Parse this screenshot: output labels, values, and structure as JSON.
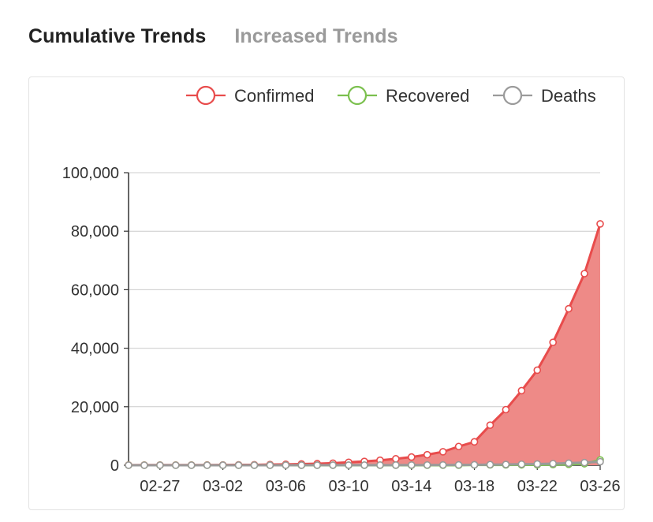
{
  "tabs": [
    {
      "label": "Cumulative Trends",
      "active": true
    },
    {
      "label": "Increased Trends",
      "active": false
    }
  ],
  "colors": {
    "confirmed": "#e84c4c",
    "confirmed_area": "#ee8a87",
    "recovered": "#7bc04e",
    "deaths": "#9a9a9a"
  },
  "chart_data": {
    "type": "area",
    "title": "",
    "xlabel": "",
    "ylabel": "",
    "ylim": [
      0,
      100000
    ],
    "yticks": [
      "0",
      "20,000",
      "40,000",
      "60,000",
      "80,000",
      "100,000"
    ],
    "x": [
      "02-25",
      "02-26",
      "02-27",
      "02-28",
      "02-29",
      "03-01",
      "03-02",
      "03-03",
      "03-04",
      "03-05",
      "03-06",
      "03-07",
      "03-08",
      "03-09",
      "03-10",
      "03-11",
      "03-12",
      "03-13",
      "03-14",
      "03-15",
      "03-16",
      "03-17",
      "03-18",
      "03-19",
      "03-20",
      "03-21",
      "03-22",
      "03-23",
      "03-24",
      "03-25",
      "03-26"
    ],
    "xtick_labels": [
      "02-27",
      "03-02",
      "03-06",
      "03-10",
      "03-14",
      "03-18",
      "03-22",
      "03-26"
    ],
    "legend_position": "top-right",
    "grid": true,
    "series": [
      {
        "name": "Confirmed",
        "values": [
          50,
          55,
          60,
          65,
          70,
          75,
          95,
          120,
          150,
          220,
          310,
          420,
          550,
          700,
          1000,
          1300,
          1700,
          2200,
          2800,
          3600,
          4600,
          6400,
          8000,
          13700,
          19000,
          25500,
          32500,
          42000,
          53500,
          65500,
          82500
        ]
      },
      {
        "name": "Recovered",
        "values": [
          5,
          5,
          5,
          5,
          7,
          7,
          7,
          7,
          7,
          8,
          8,
          8,
          8,
          8,
          8,
          8,
          10,
          10,
          12,
          12,
          12,
          12,
          100,
          100,
          110,
          130,
          150,
          200,
          300,
          500,
          1800
        ]
      },
      {
        "name": "Deaths",
        "values": [
          0,
          0,
          0,
          0,
          1,
          1,
          5,
          7,
          10,
          12,
          15,
          17,
          20,
          22,
          28,
          32,
          40,
          50,
          57,
          70,
          90,
          110,
          150,
          200,
          260,
          340,
          420,
          540,
          700,
          900,
          1200
        ]
      }
    ]
  }
}
